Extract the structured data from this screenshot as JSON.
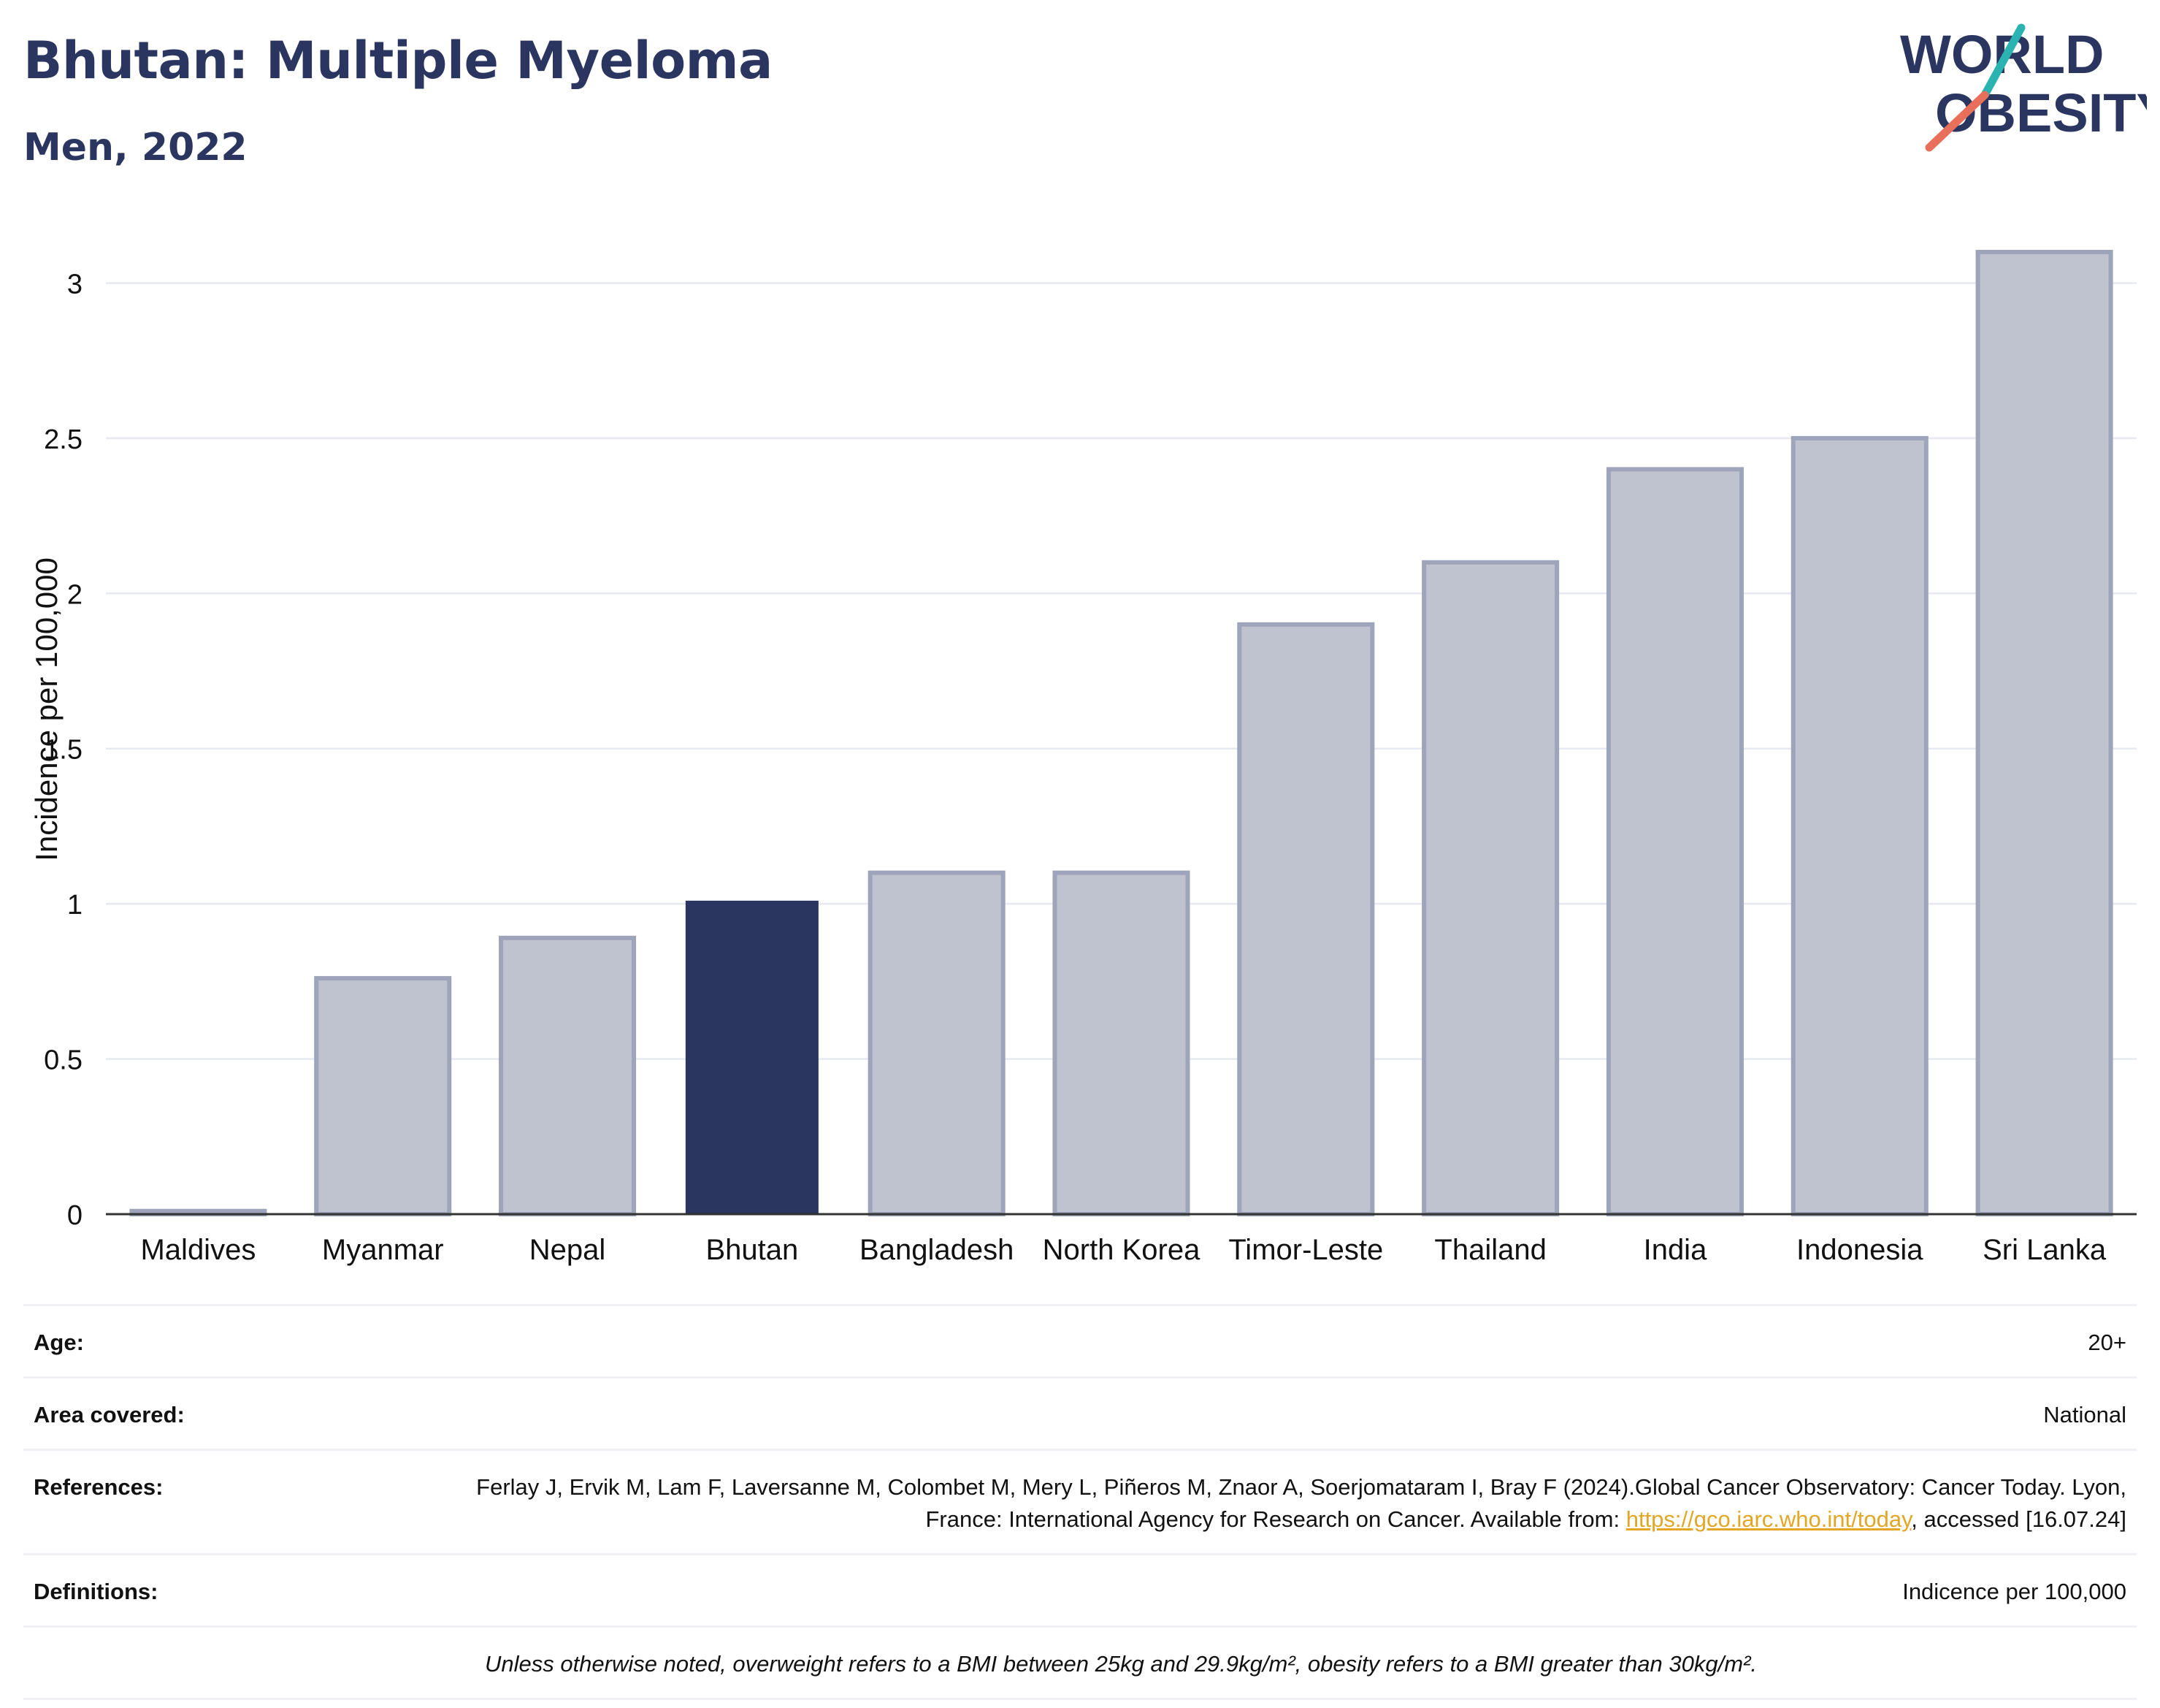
{
  "header": {
    "title": "Bhutan: Multiple Myeloma",
    "subtitle": "Men, 2022"
  },
  "logo": {
    "line1": "WORLD",
    "line2": "OBESITY"
  },
  "colors": {
    "highlight": "#2a3560",
    "bar_fill": "#bfc3d0",
    "bar_stroke": "#9ea4b9",
    "grid": "#e6e9f0",
    "logo_teal": "#2ab3b1",
    "logo_coral": "#e8705a"
  },
  "chart_data": {
    "type": "bar",
    "categories": [
      "Maldives",
      "Myanmar",
      "Nepal",
      "Bhutan",
      "Bangladesh",
      "North Korea",
      "Timor-Leste",
      "Thailand",
      "India",
      "Indonesia",
      "Sri Lanka"
    ],
    "values": [
      0.01,
      0.76,
      0.89,
      1.01,
      1.1,
      1.1,
      1.9,
      2.1,
      2.4,
      2.5,
      3.1
    ],
    "highlight": "Bhutan",
    "ylabel": "Incidence per 100,000",
    "xlabel": "",
    "ylim": [
      0,
      3.3
    ],
    "yticks": [
      0,
      0.5,
      1,
      1.5,
      2,
      2.5,
      3
    ],
    "ytick_labels": [
      "0",
      "0.5",
      "1",
      "1.5",
      "2",
      "2.5",
      "3"
    ],
    "grid": true
  },
  "info": {
    "age_label": "Age:",
    "age_value": "20+",
    "area_label": "Area covered:",
    "area_value": "National",
    "references_label": "References:",
    "references_text": "Ferlay J, Ervik M, Lam F, Laversanne M, Colombet M, Mery L, Piñeros M, Znaor A, Soerjomataram I, Bray F (2024).Global Cancer Observatory: Cancer Today. Lyon, France: International Agency for Research on Cancer. Available from: ",
    "references_link": "https://gco.iarc.who.int/today",
    "references_suffix": ", accessed [16.07.24]",
    "definitions_label": "Definitions:",
    "definitions_value": "Indicence per 100,000",
    "note": "Unless otherwise noted, overweight refers to a BMI between 25kg and 29.9kg/m², obesity refers to a BMI greater than 30kg/m²."
  }
}
